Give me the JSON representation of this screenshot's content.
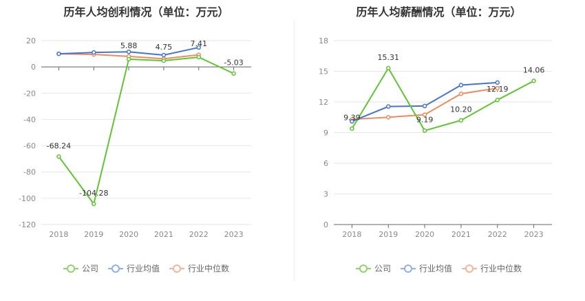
{
  "charts": [
    {
      "title": "历年人均创利情况（单位：万元）",
      "legend": [
        "公司",
        "行业均值",
        "行业中位数"
      ],
      "colors": [
        "#5ec430",
        "#4473d6",
        "#f08a5d"
      ],
      "chart_data": {
        "type": "line",
        "categories": [
          "2018",
          "2019",
          "2020",
          "2021",
          "2022",
          "2023"
        ],
        "series": [
          {
            "name": "公司",
            "values": [
              -68.24,
              -104.28,
              5.88,
              4.75,
              7.41,
              -5.03
            ],
            "labels": [
              "-68.24",
              "-104.28",
              "5.88",
              "4.75",
              "7.41",
              "-5.03"
            ]
          },
          {
            "name": "行业均值",
            "values": [
              10.0,
              11.0,
              11.5,
              9.0,
              14.8,
              null
            ],
            "labels": []
          },
          {
            "name": "行业中位数",
            "values": [
              10.0,
              9.5,
              8.0,
              6.2,
              9.2,
              null
            ],
            "labels": []
          }
        ],
        "yticks": [
          "20",
          "0",
          "-20",
          "-40",
          "-60",
          "-80",
          "-100",
          "-120"
        ],
        "ylim": [
          -120,
          20
        ]
      }
    },
    {
      "title": "历年人均薪酬情况（单位：万元）",
      "legend": [
        "公司",
        "行业均值",
        "行业中位数"
      ],
      "colors": [
        "#5ec430",
        "#4473d6",
        "#f08a5d"
      ],
      "chart_data": {
        "type": "line",
        "categories": [
          "2018",
          "2019",
          "2020",
          "2021",
          "2022",
          "2023"
        ],
        "series": [
          {
            "name": "公司",
            "values": [
              9.39,
              15.31,
              9.19,
              10.2,
              12.19,
              14.06
            ],
            "labels": [
              "9.39",
              "15.31",
              "9.19",
              "10.20",
              "12.19",
              "14.06"
            ]
          },
          {
            "name": "行业均值",
            "values": [
              10.1,
              11.55,
              11.6,
              13.65,
              13.9,
              null
            ],
            "labels": []
          },
          {
            "name": "行业中位数",
            "values": [
              10.3,
              10.5,
              10.75,
              12.8,
              13.35,
              null
            ],
            "labels": []
          }
        ],
        "yticks": [
          "18",
          "15",
          "12",
          "9",
          "6",
          "3",
          "0"
        ],
        "ylim": [
          0,
          18
        ]
      }
    }
  ]
}
